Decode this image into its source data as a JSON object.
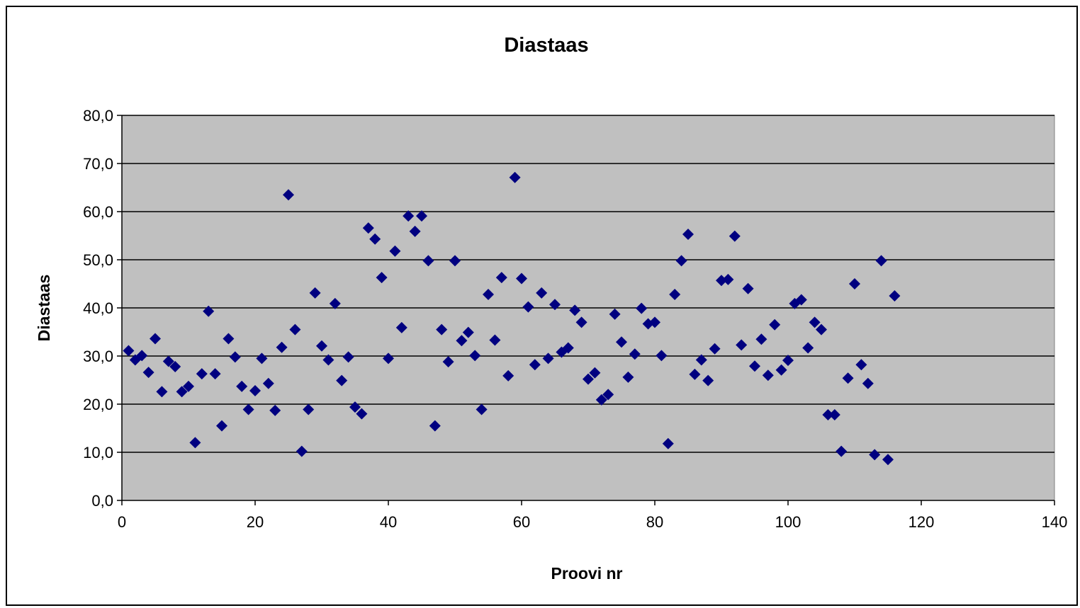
{
  "chart_data": {
    "type": "scatter",
    "title": "Diastaas",
    "xlabel": "Proovi nr",
    "ylabel": "Diastaas",
    "xlim": [
      0,
      140
    ],
    "ylim": [
      0,
      80
    ],
    "x_ticks": [
      "0",
      "20",
      "40",
      "60",
      "80",
      "100",
      "120",
      "140"
    ],
    "y_ticks": [
      "0,0",
      "10,0",
      "20,0",
      "30,0",
      "40,0",
      "50,0",
      "60,0",
      "70,0",
      "80,0"
    ],
    "grid": "horizontal",
    "legend": "none",
    "colors": {
      "plot_background": "#c0c0c0",
      "marker": "#000080",
      "gridline": "#000000"
    },
    "marker_shape": "diamond",
    "series": [
      {
        "x": [
          1,
          2,
          3,
          4,
          5,
          6,
          7,
          8,
          9,
          10,
          11,
          12,
          13,
          14,
          15,
          16,
          17,
          18,
          19,
          20,
          21,
          22,
          23,
          24,
          25,
          26,
          27,
          28,
          29,
          30,
          31,
          32,
          33,
          34,
          35,
          36,
          37,
          38,
          39,
          40,
          41,
          42,
          43,
          44,
          45,
          46,
          47,
          48,
          49,
          50,
          51,
          52,
          53,
          54,
          55,
          56,
          57,
          58,
          59,
          60,
          61,
          62,
          63,
          64,
          65,
          66,
          67,
          68,
          69,
          70,
          71,
          72,
          73,
          74,
          75,
          76,
          77,
          78,
          79,
          80,
          81,
          82,
          83,
          84,
          85,
          86,
          87,
          88,
          89,
          90,
          91,
          92,
          93,
          94,
          95,
          96,
          97,
          98,
          99,
          100,
          101,
          102,
          103,
          104,
          105,
          106,
          107,
          108,
          109,
          110,
          111,
          112,
          113,
          114,
          115,
          116
        ],
        "y": [
          31.1,
          29.2,
          30.1,
          26.6,
          33.6,
          22.6,
          28.9,
          27.8,
          22.6,
          23.7,
          12.0,
          26.3,
          39.3,
          26.3,
          15.5,
          33.6,
          29.8,
          23.7,
          18.9,
          22.8,
          29.5,
          24.3,
          18.7,
          31.8,
          63.5,
          35.5,
          10.2,
          18.9,
          43.1,
          32.1,
          29.2,
          40.9,
          24.9,
          29.8,
          19.4,
          18.0,
          56.6,
          54.3,
          46.3,
          29.5,
          51.8,
          35.9,
          59.1,
          55.9,
          59.1,
          49.8,
          15.5,
          35.5,
          28.8,
          49.8,
          33.2,
          34.9,
          30.1,
          18.9,
          42.8,
          33.3,
          46.3,
          25.9,
          67.1,
          46.1,
          40.2,
          28.2,
          43.1,
          29.5,
          40.7,
          30.8,
          31.7,
          39.5,
          37.0,
          25.2,
          26.5,
          20.9,
          22.0,
          38.7,
          32.9,
          25.6,
          30.4,
          39.9,
          36.7,
          37.0,
          30.1,
          11.8,
          42.8,
          49.8,
          55.3,
          26.2,
          29.2,
          24.9,
          31.5,
          45.7,
          45.9,
          54.9,
          32.3,
          44.0,
          27.9,
          33.5,
          26.0,
          36.5,
          27.1,
          29.1,
          40.9,
          41.7,
          31.7,
          37.0,
          35.5,
          17.8,
          17.8,
          10.2,
          25.4,
          45.0,
          28.2,
          24.3,
          9.5,
          49.8,
          8.5,
          42.5
        ]
      }
    ]
  }
}
